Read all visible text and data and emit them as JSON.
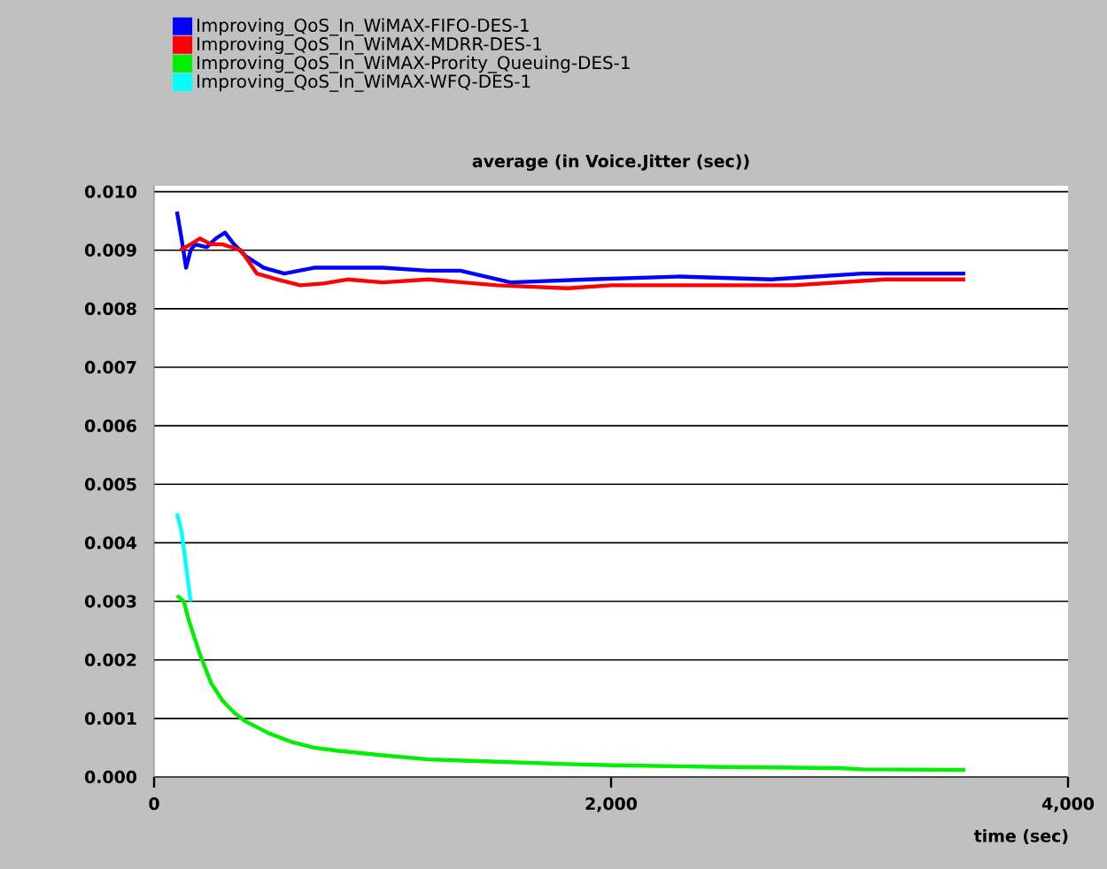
{
  "chart_data": {
    "type": "line",
    "title": "average (in Voice.Jitter (sec))",
    "xlabel": "time (sec)",
    "xlim": [
      0,
      4000
    ],
    "xticks": [
      0,
      {
        "value": 2000,
        "label": "2,000"
      },
      {
        "value": 4000,
        "label": "4,000"
      }
    ],
    "ylim": [
      0,
      0.0101
    ],
    "yticks": [
      {
        "value": 0,
        "label": "0.000"
      },
      {
        "value": 0.001,
        "label": "0.001"
      },
      {
        "value": 0.002,
        "label": "0.002"
      },
      {
        "value": 0.003,
        "label": "0.003"
      },
      {
        "value": 0.004,
        "label": "0.004"
      },
      {
        "value": 0.005,
        "label": "0.005"
      },
      {
        "value": 0.006,
        "label": "0.006"
      },
      {
        "value": 0.007,
        "label": "0.007"
      },
      {
        "value": 0.008,
        "label": "0.008"
      },
      {
        "value": 0.009,
        "label": "0.009"
      },
      {
        "value": 0.01,
        "label": "0.010"
      }
    ],
    "grid": "y",
    "legend": "top",
    "marker": "none",
    "line_style": "solid",
    "series": [
      {
        "name": "Improving_QoS_In_WiMAX-FIFO-DES-1",
        "color": "#0000ff",
        "x": [
          100,
          120,
          140,
          160,
          180,
          230,
          270,
          310,
          350,
          400,
          480,
          570,
          700,
          840,
          1000,
          1200,
          1340,
          1560,
          1900,
          2300,
          2700,
          3100,
          3550
        ],
        "values": [
          0.00966,
          0.0092,
          0.0087,
          0.009,
          0.0091,
          0.00905,
          0.0092,
          0.0093,
          0.0091,
          0.0089,
          0.0087,
          0.0086,
          0.0087,
          0.0087,
          0.0087,
          0.00865,
          0.00865,
          0.00845,
          0.0085,
          0.00855,
          0.0085,
          0.0086,
          0.0086
        ]
      },
      {
        "name": "Improving_QoS_In_WiMAX-MDRR-DES-1",
        "color": "#ff0000",
        "x": [
          115,
          160,
          200,
          250,
          300,
          380,
          450,
          540,
          640,
          740,
          846,
          1000,
          1200,
          1500,
          1810,
          2000,
          2400,
          2800,
          3200,
          3550
        ],
        "values": [
          0.009,
          0.0091,
          0.0092,
          0.0091,
          0.0091,
          0.009,
          0.0086,
          0.0085,
          0.0084,
          0.00843,
          0.0085,
          0.00845,
          0.0085,
          0.0084,
          0.00835,
          0.0084,
          0.0084,
          0.0084,
          0.0085,
          0.0085
        ]
      },
      {
        "name": "Improving_QoS_In_WiMAX-Prority_Queuing-DES-1",
        "color": "#00ee00",
        "x": [
          100,
          130,
          150,
          200,
          250,
          300,
          350,
          400,
          500,
          600,
          700,
          800,
          1000,
          1200,
          1500,
          1800,
          2000,
          2500,
          3000,
          3100,
          3550
        ],
        "values": [
          0.0031,
          0.003,
          0.0027,
          0.0021,
          0.0016,
          0.0013,
          0.0011,
          0.00095,
          0.00075,
          0.0006,
          0.0005,
          0.00045,
          0.00037,
          0.0003,
          0.00026,
          0.00022,
          0.0002,
          0.00017,
          0.00015,
          0.00013,
          0.00012
        ]
      },
      {
        "name": "Improving_QoS_In_WiMAX-WFQ-DES-1",
        "color": "#00ffff",
        "x": [
          100,
          120,
          140,
          160
        ],
        "values": [
          0.0045,
          0.0042,
          0.0036,
          0.003
        ]
      }
    ]
  }
}
